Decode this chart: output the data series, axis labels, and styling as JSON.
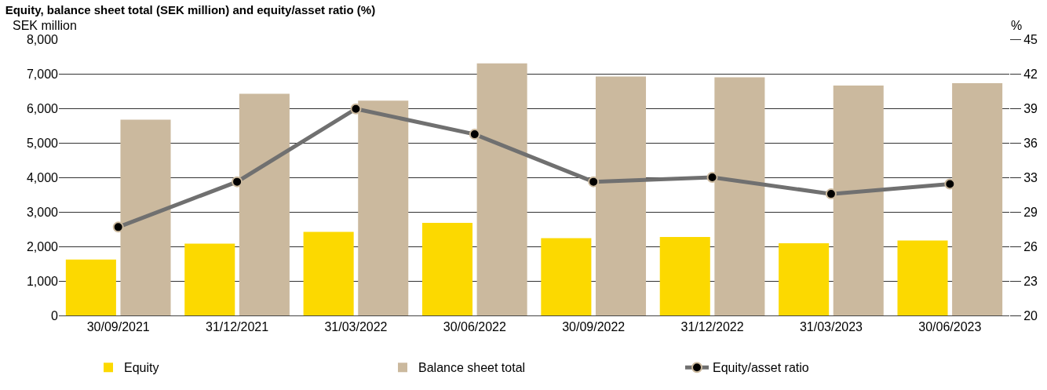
{
  "chart_data": {
    "type": "bar",
    "title": "Equity, balance sheet total (SEK million) and equity/asset ratio (%)",
    "ylabel": "SEK million",
    "y2label": "%",
    "categories": [
      "30/09/2021",
      "31/12/2021",
      "31/03/2022",
      "30/06/2022",
      "30/09/2022",
      "31/12/2022",
      "31/03/2023",
      "30/06/2023"
    ],
    "series": [
      {
        "name": "Equity",
        "color": "#fcd900",
        "values": [
          1620,
          2080,
          2420,
          2680,
          2240,
          2270,
          2090,
          2170
        ]
      },
      {
        "name": "Balance sheet total",
        "color": "#cbb99e",
        "values": [
          5670,
          6420,
          6220,
          7300,
          6920,
          6900,
          6660,
          6730
        ]
      },
      {
        "name": "Equity/asset ratio",
        "type": "line",
        "axis": "y2",
        "color": "#707070",
        "values": [
          28.0,
          32.1,
          38.7,
          36.4,
          32.1,
          32.5,
          31.0,
          31.9
        ]
      }
    ],
    "ylim": [
      0,
      8000
    ],
    "yticks": [
      {
        "value": 0,
        "label": "0"
      },
      {
        "value": 1000,
        "label": "1,000"
      },
      {
        "value": 2000,
        "label": "2,000"
      },
      {
        "value": 3000,
        "label": "3,000"
      },
      {
        "value": 4000,
        "label": "4,000"
      },
      {
        "value": 5000,
        "label": "5,000"
      },
      {
        "value": 6000,
        "label": "6,000"
      },
      {
        "value": 7000,
        "label": "7,000"
      },
      {
        "value": 8000,
        "label": "8,000"
      }
    ],
    "y2lim": [
      20,
      45
    ],
    "y2ticks": [
      20,
      {
        "value": 23.125,
        "label": "23"
      },
      {
        "value": 26.25,
        "label": "26"
      },
      {
        "value": 29.375,
        "label": "29"
      },
      {
        "value": 32.5,
        "label": "33"
      },
      {
        "value": 35.625,
        "label": "36"
      },
      {
        "value": 38.75,
        "label": "39"
      },
      {
        "value": 41.875,
        "label": "42"
      },
      45
    ],
    "grid": "y",
    "legend": "bottom",
    "marker": "circle",
    "line_style": "solid"
  }
}
